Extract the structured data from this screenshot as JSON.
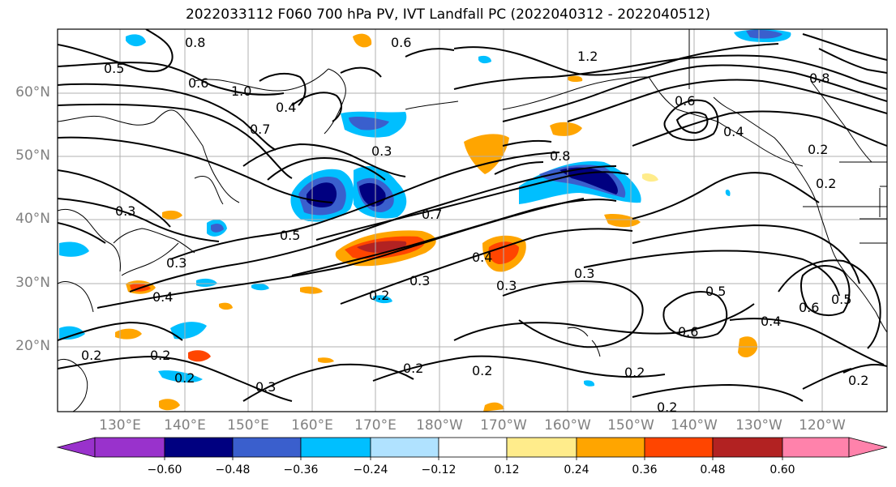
{
  "title": "2022033112 F060 700 hPa PV, IVT Landfall PC (2022040312 - 2022040512)",
  "lat_labels": [
    "60°N",
    "50°N",
    "40°N",
    "30°N",
    "20°N"
  ],
  "lon_labels": [
    "130°E",
    "140°E",
    "150°E",
    "160°E",
    "170°E",
    "180°W",
    "170°W",
    "160°W",
    "150°W",
    "140°W",
    "130°W",
    "120°W"
  ],
  "colorbar": {
    "ticks": [
      "−0.60",
      "−0.48",
      "−0.36",
      "−0.24",
      "−0.12",
      "0.12",
      "0.24",
      "0.36",
      "0.48",
      "0.60"
    ],
    "colors": [
      "#9932cc",
      "#000080",
      "#3a5fcd",
      "#00bfff",
      "#b0e2ff",
      "#ffffff",
      "#ffec8b",
      "#ffa500",
      "#ff4500",
      "#b22222",
      "#ff82ab"
    ]
  },
  "contour_labels": [
    "0.6",
    "1.2",
    "1.0",
    "0.8",
    "0.5",
    "0.7",
    "0.3",
    "0.8",
    "0.6",
    "0.4",
    "0.2",
    "0.2",
    "0.3",
    "0.5",
    "0.7",
    "0.4",
    "0.2",
    "0.3",
    "0.3",
    "0.4",
    "0.3",
    "0.2",
    "0.3",
    "0.2",
    "0.2",
    "0.2",
    "0.5",
    "0.6",
    "0.4",
    "0.6",
    "0.5",
    "0.2",
    "0.2",
    "0.2",
    "0.2",
    "0.3",
    "0.4",
    "0.6",
    "0.8"
  ]
}
